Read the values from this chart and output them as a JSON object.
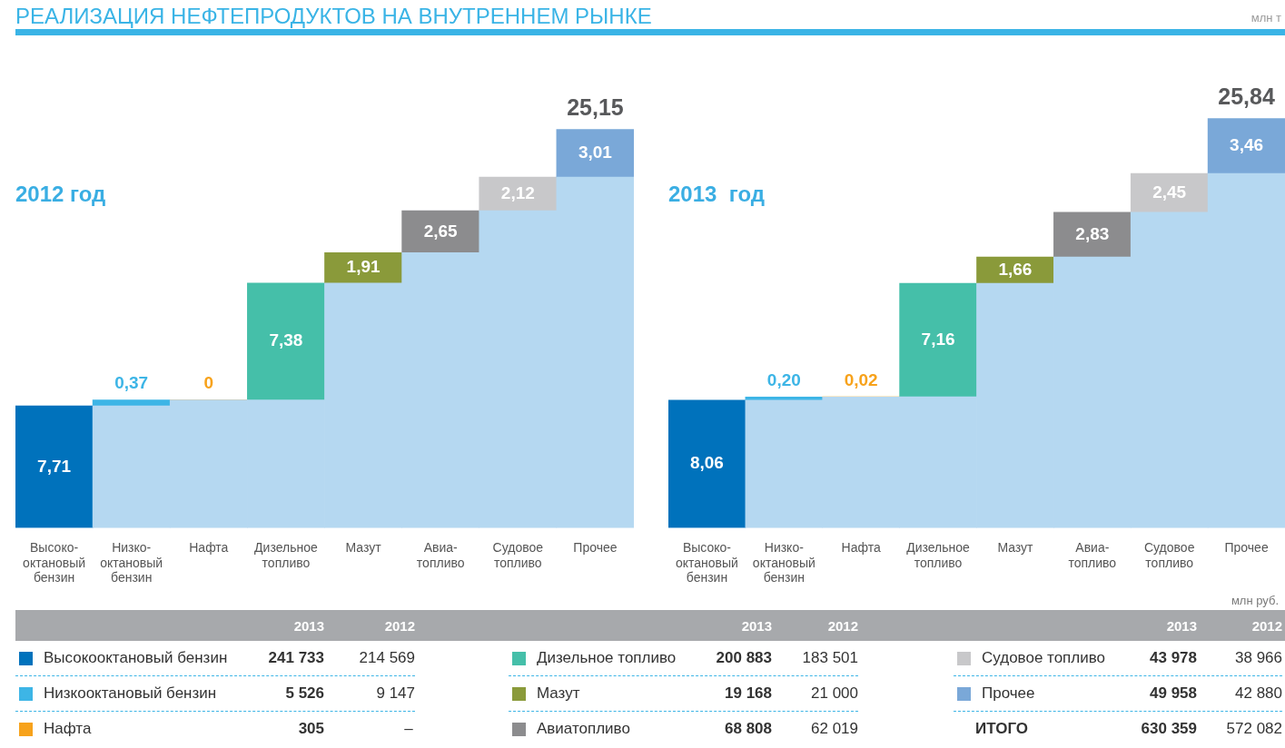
{
  "chart_data": [
    {
      "type": "bar",
      "title": "РЕАЛИЗАЦИЯ НЕФТЕПРОДУКТОВ НА ВНУТРЕННЕМ РЫНКЕ",
      "subtitle": "2012 год",
      "annotations": [
        "млн т"
      ],
      "stacked": true,
      "legend": false,
      "grid": false,
      "categories": [
        "Высоко-\nоктановый\nбензин",
        "Низко-\nоктановый\nбензин",
        "Нафта",
        "Дизельное\nтопливо",
        "Мазут",
        "Авиа-\nтопливо",
        "Судовое\nтопливо",
        "Прочее"
      ],
      "series": [
        {
          "color": "#b5d8f1",
          "values": [
            0,
            7.71,
            8.08,
            8.08,
            15.46,
            17.37,
            20.02,
            22.14
          ]
        },
        {
          "colors": [
            "#0072bc",
            "#3db5e6",
            "#f7a21b",
            "#45bfa9",
            "#8a9a3a",
            "#8c8c8e",
            "#c8c8ca",
            "#7aa8d8"
          ],
          "values": [
            7.71,
            0.37,
            0,
            7.38,
            1.91,
            2.65,
            2.12,
            3.01
          ],
          "value_labels": [
            "7,71",
            "0,37",
            "0",
            "7,38",
            "1,91",
            "2,65",
            "2,12",
            "3,01"
          ]
        }
      ],
      "totals": [
        null,
        null,
        null,
        null,
        null,
        null,
        null,
        "25,15"
      ]
    },
    {
      "type": "bar",
      "subtitle": "2013  год",
      "stacked": true,
      "legend": false,
      "grid": false,
      "categories": [
        "Высоко-\nоктановый\nбензин",
        "Низко-\nоктановый\nбензин",
        "Нафта",
        "Дизельное\nтопливо",
        "Мазут",
        "Авиа-\nтопливо",
        "Судовое\nтопливо",
        "Прочее"
      ],
      "series": [
        {
          "color": "#b5d8f1",
          "values": [
            0,
            8.06,
            8.26,
            8.28,
            15.44,
            17.1,
            19.93,
            22.38
          ]
        },
        {
          "colors": [
            "#0072bc",
            "#3db5e6",
            "#f7a21b",
            "#45bfa9",
            "#8a9a3a",
            "#8c8c8e",
            "#c8c8ca",
            "#7aa8d8"
          ],
          "values": [
            8.06,
            0.2,
            0.02,
            7.16,
            1.66,
            2.83,
            2.45,
            3.46
          ],
          "value_labels": [
            "8,06",
            "0,20",
            "0,02",
            "7,16",
            "1,66",
            "2,83",
            "2,45",
            "3,46"
          ]
        }
      ],
      "totals": [
        null,
        null,
        null,
        null,
        null,
        null,
        null,
        "25,84"
      ]
    },
    {
      "type": "other",
      "categories": [
        "Высокооктановый бензин",
        "Низкооктановый бензин",
        "Нафта"
      ],
      "colors": [
        "#0072bc",
        "#3db5e6",
        "#f7a21b"
      ],
      "series": [
        {
          "name": "2013",
          "values": [
            241733,
            5526,
            305
          ],
          "value_labels": [
            "241 733",
            "5 526",
            "305"
          ]
        },
        {
          "name": "2012",
          "values": [
            214569,
            9147,
            null
          ],
          "value_labels": [
            "214 569",
            "9 147",
            "–"
          ]
        }
      ]
    },
    {
      "type": "other",
      "categories": [
        "Дизельное топливо",
        "Мазут",
        "Авиатопливо"
      ],
      "colors": [
        "#45bfa9",
        "#8a9a3a",
        "#8c8c8e"
      ],
      "series": [
        {
          "name": "2013",
          "values": [
            200883,
            19168,
            68808
          ],
          "value_labels": [
            "200 883",
            "19 168",
            "68 808"
          ]
        },
        {
          "name": "2012",
          "values": [
            183501,
            21000,
            62019
          ],
          "value_labels": [
            "183 501",
            "21 000",
            "62 019"
          ]
        }
      ]
    },
    {
      "type": "other",
      "annotations": [
        "млн руб."
      ],
      "categories": [
        "Судовое топливо",
        "Прочее",
        "ИТОГО"
      ],
      "colors": [
        "#c8c8ca",
        "#7aa8d8",
        null
      ],
      "series": [
        {
          "name": "2013",
          "values": [
            43978,
            49958,
            630359
          ],
          "value_labels": [
            "43 978",
            "49 958",
            "630 359"
          ]
        },
        {
          "name": "2012",
          "values": [
            38966,
            42880,
            572082
          ],
          "value_labels": [
            "38 966",
            "42 880",
            "572 082"
          ]
        }
      ]
    }
  ]
}
